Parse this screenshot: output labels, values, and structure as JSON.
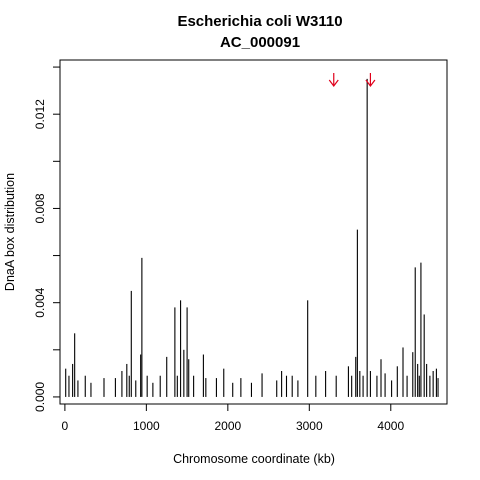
{
  "chart_data": {
    "type": "bar",
    "title": "Escherichia coli W3110",
    "subtitle": "AC_000091",
    "xlabel": "Chromosome coordinate (kb)",
    "ylabel": "DnaA box distribution",
    "xlim": [
      -60,
      4690
    ],
    "ylim": [
      -0.0003,
      0.0143
    ],
    "x_ticks": [
      0,
      1000,
      2000,
      3000,
      4000
    ],
    "x_tick_labels": [
      "0",
      "1000",
      "2000",
      "3000",
      "4000"
    ],
    "y_ticks": [
      0.0,
      0.004,
      0.008,
      0.012
    ],
    "y_tick_labels": [
      "0.000",
      "0.004",
      "0.008",
      "0.012"
    ],
    "grid": false,
    "bar_color": "#000000",
    "arrow_color": "#e0001b",
    "arrows_x": [
      3300,
      3750
    ],
    "peaks": {
      "x": [
        10,
        50,
        95,
        120,
        160,
        250,
        320,
        480,
        620,
        700,
        760,
        790,
        815,
        870,
        930,
        945,
        1010,
        1080,
        1170,
        1250,
        1350,
        1380,
        1420,
        1460,
        1500,
        1520,
        1580,
        1700,
        1730,
        1860,
        1950,
        2060,
        2160,
        2290,
        2420,
        2600,
        2660,
        2720,
        2790,
        2860,
        2980,
        3080,
        3200,
        3330,
        3480,
        3520,
        3570,
        3590,
        3620,
        3660,
        3710,
        3750,
        3830,
        3880,
        3930,
        4010,
        4080,
        4150,
        4200,
        4270,
        4300,
        4330,
        4350,
        4370,
        4410,
        4440,
        4480,
        4520,
        4560,
        4580
      ],
      "values": [
        0.0012,
        0.0009,
        0.0014,
        0.0027,
        0.0007,
        0.0009,
        0.0006,
        0.0008,
        0.0008,
        0.0011,
        0.0014,
        0.0009,
        0.0045,
        0.0007,
        0.0018,
        0.0059,
        0.0009,
        0.0006,
        0.0009,
        0.0017,
        0.0038,
        0.0009,
        0.0041,
        0.002,
        0.0038,
        0.0016,
        0.0009,
        0.0018,
        0.0008,
        0.0008,
        0.0012,
        0.0006,
        0.0008,
        0.0006,
        0.001,
        0.0007,
        0.0011,
        0.0009,
        0.0009,
        0.0007,
        0.0041,
        0.0009,
        0.0011,
        0.0009,
        0.0013,
        0.0009,
        0.0017,
        0.0071,
        0.0011,
        0.0009,
        0.0135,
        0.0011,
        0.0009,
        0.0016,
        0.001,
        0.0007,
        0.0013,
        0.0021,
        0.0009,
        0.0019,
        0.0055,
        0.0014,
        0.0009,
        0.0057,
        0.0035,
        0.0014,
        0.0009,
        0.0011,
        0.0012,
        0.0008
      ]
    }
  }
}
